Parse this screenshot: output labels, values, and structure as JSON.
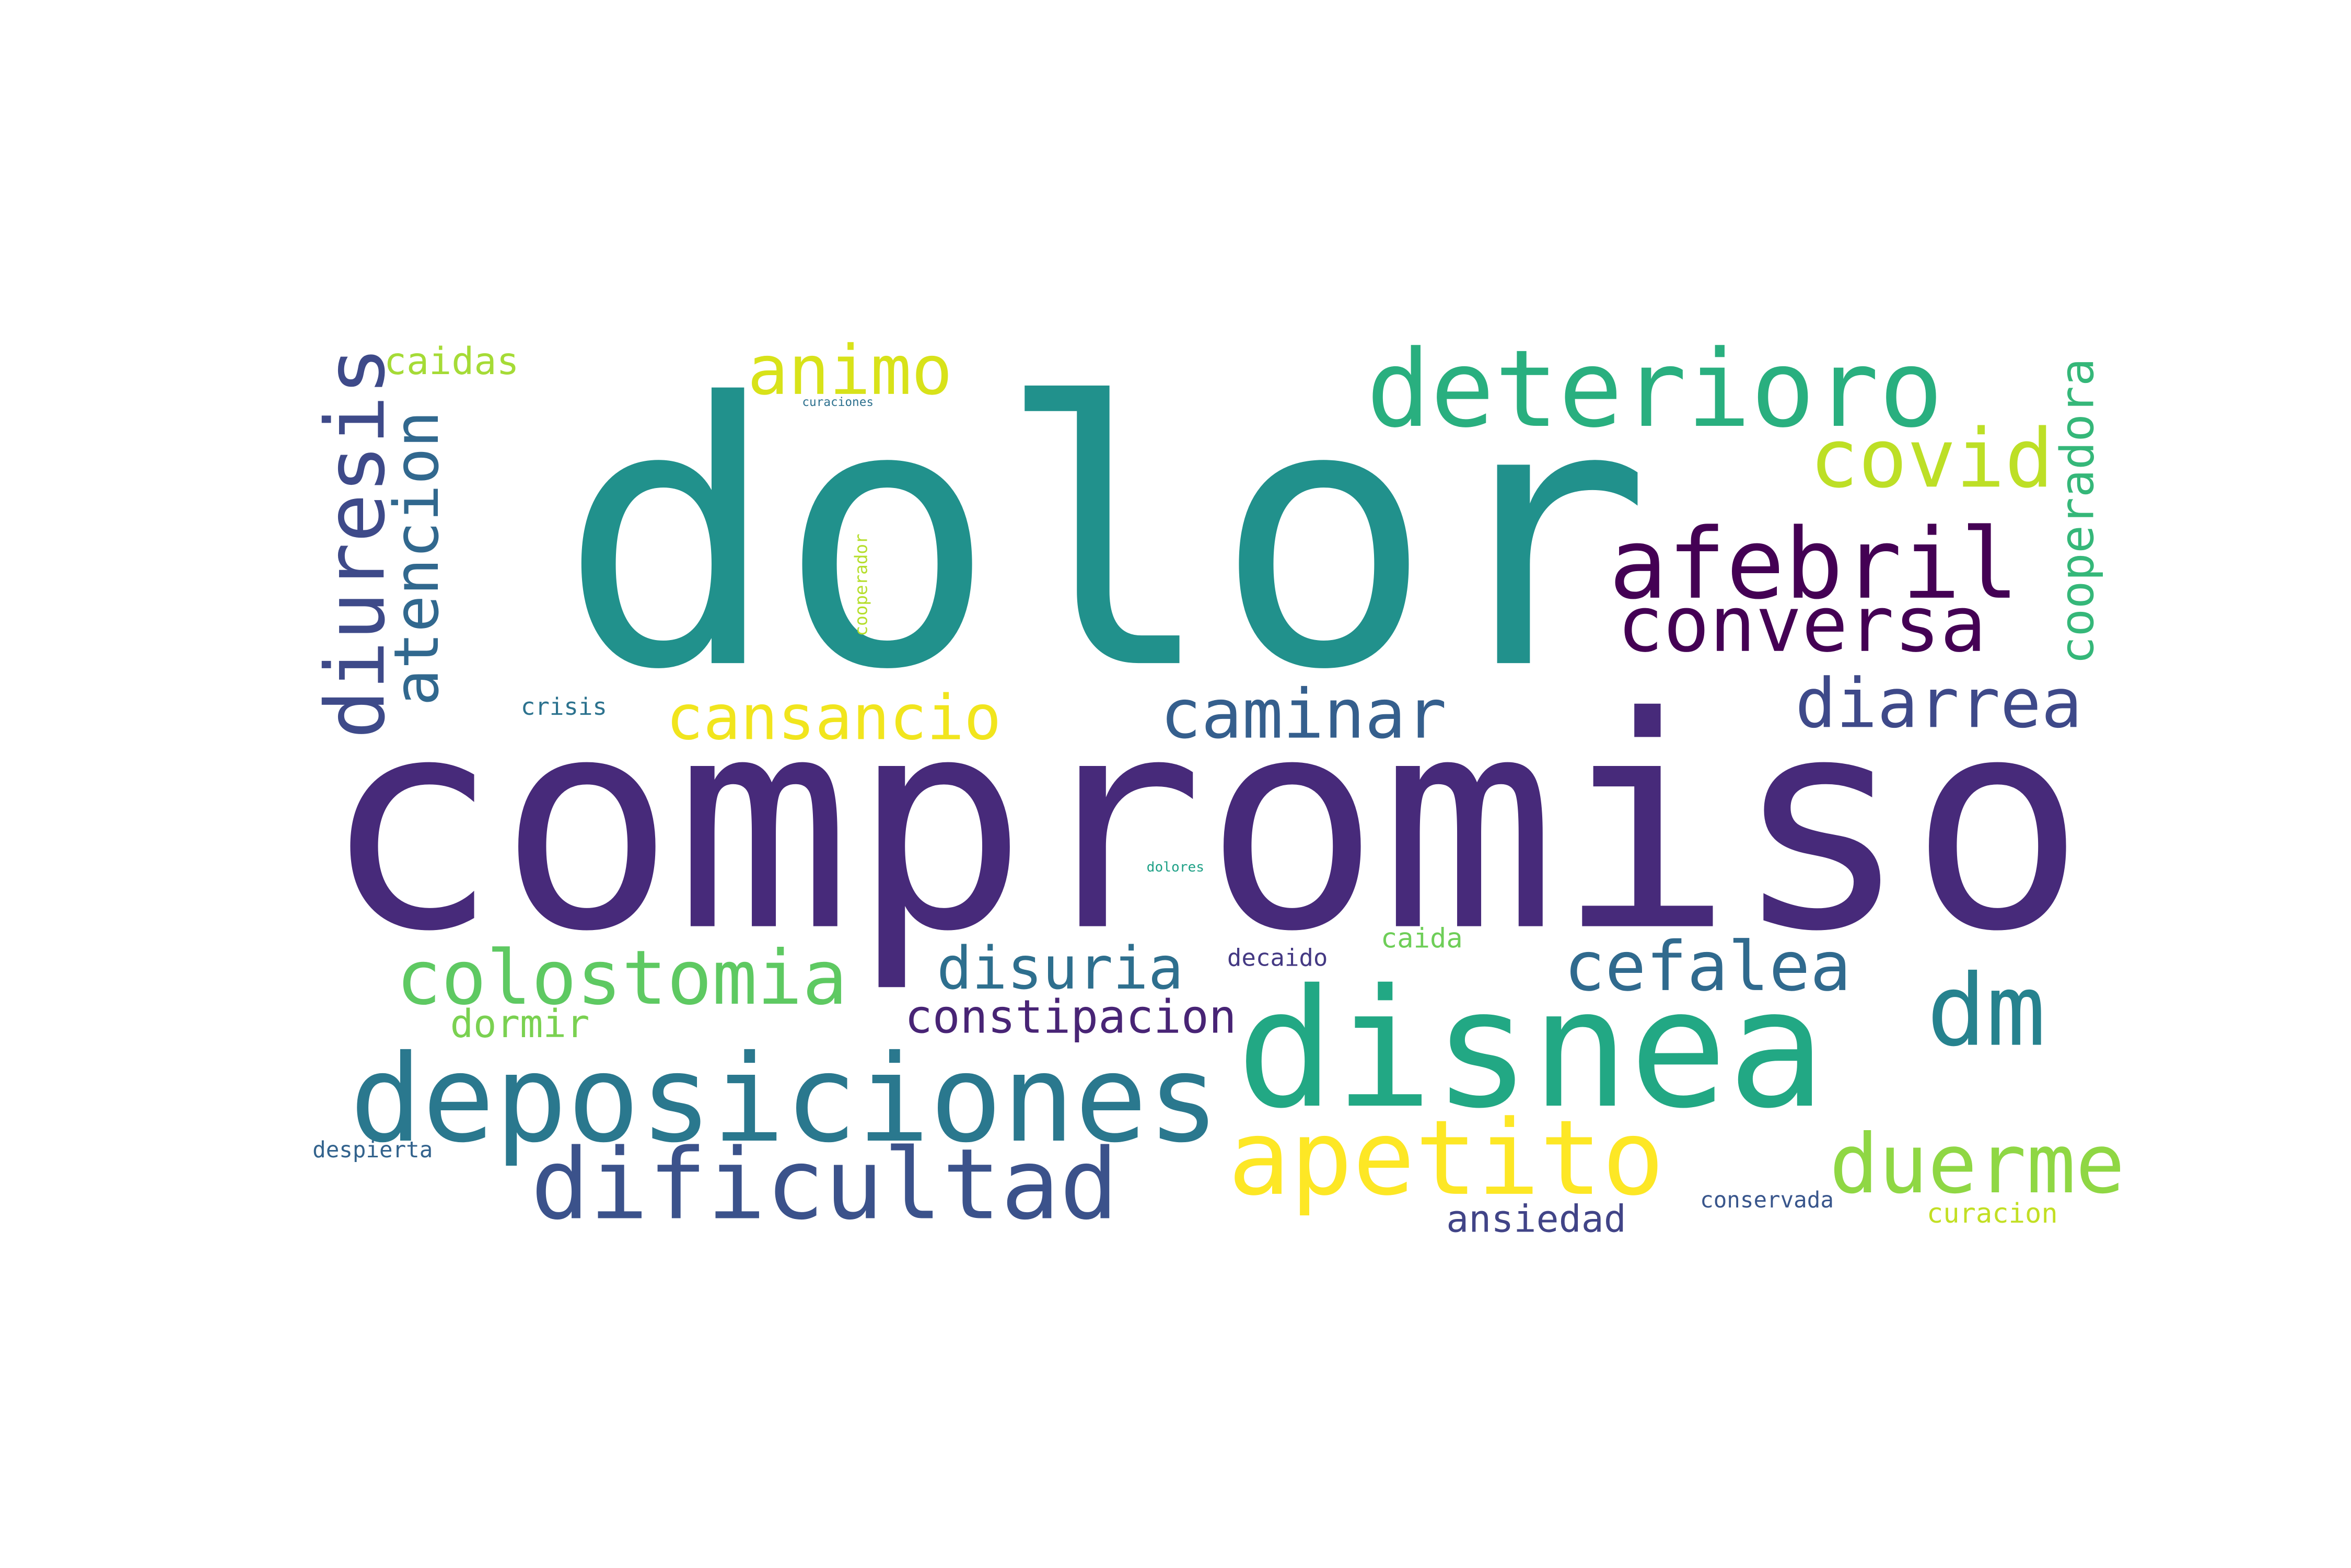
{
  "words": [
    {
      "text": "dolor",
      "color": "#21918c",
      "vertical": false
    },
    {
      "text": "compromiso",
      "color": "#472a7a",
      "vertical": false
    },
    {
      "text": "disnea",
      "color": "#22a884",
      "vertical": false
    },
    {
      "text": "deposiciones",
      "color": "#2a788e",
      "vertical": false
    },
    {
      "text": "deterioro",
      "color": "#29af7f",
      "vertical": false
    },
    {
      "text": "apetito",
      "color": "#fde725",
      "vertical": false
    },
    {
      "text": "dificultad",
      "color": "#3b528b",
      "vertical": false
    },
    {
      "text": "afebril",
      "color": "#440154",
      "vertical": false
    },
    {
      "text": "diuresis",
      "color": "#3e4a89",
      "vertical": true
    },
    {
      "text": "dm",
      "color": "#26828e",
      "vertical": false
    },
    {
      "text": "covid",
      "color": "#bddf26",
      "vertical": false
    },
    {
      "text": "duerme",
      "color": "#8fd744",
      "vertical": false
    },
    {
      "text": "conversa",
      "color": "#440154",
      "vertical": false
    },
    {
      "text": "colostomia",
      "color": "#5ec962",
      "vertical": false
    },
    {
      "text": "atencion",
      "color": "#31688e",
      "vertical": true
    },
    {
      "text": "cefalea",
      "color": "#306a8e",
      "vertical": false
    },
    {
      "text": "diarrea",
      "color": "#3e4989",
      "vertical": false
    },
    {
      "text": "caminar",
      "color": "#355f8d",
      "vertical": false
    },
    {
      "text": "disuria",
      "color": "#2e6f8e",
      "vertical": false
    },
    {
      "text": "cansancio",
      "color": "#f1e51d",
      "vertical": false
    },
    {
      "text": "animo",
      "color": "#d8e219",
      "vertical": false
    },
    {
      "text": "cooperadora",
      "color": "#35b779",
      "vertical": true
    },
    {
      "text": "constipacion",
      "color": "#482475",
      "vertical": false
    },
    {
      "text": "caidas",
      "color": "#a5db36",
      "vertical": false
    },
    {
      "text": "dormir",
      "color": "#7ad151",
      "vertical": false
    },
    {
      "text": "ansiedad",
      "color": "#414487",
      "vertical": false
    },
    {
      "text": "decaido",
      "color": "#443983",
      "vertical": false
    },
    {
      "text": "caida",
      "color": "#6ece58",
      "vertical": false
    },
    {
      "text": "crisis",
      "color": "#2c728e",
      "vertical": false
    },
    {
      "text": "curacion",
      "color": "#c2df23",
      "vertical": false
    },
    {
      "text": "despierta",
      "color": "#33638d",
      "vertical": false
    },
    {
      "text": "conservada",
      "color": "#39568c",
      "vertical": false
    },
    {
      "text": "cooperador",
      "color": "#b5de2b",
      "vertical": true
    },
    {
      "text": "dolores",
      "color": "#1fa187",
      "vertical": false
    },
    {
      "text": "curaciones",
      "color": "#2d708e",
      "vertical": false
    }
  ]
}
